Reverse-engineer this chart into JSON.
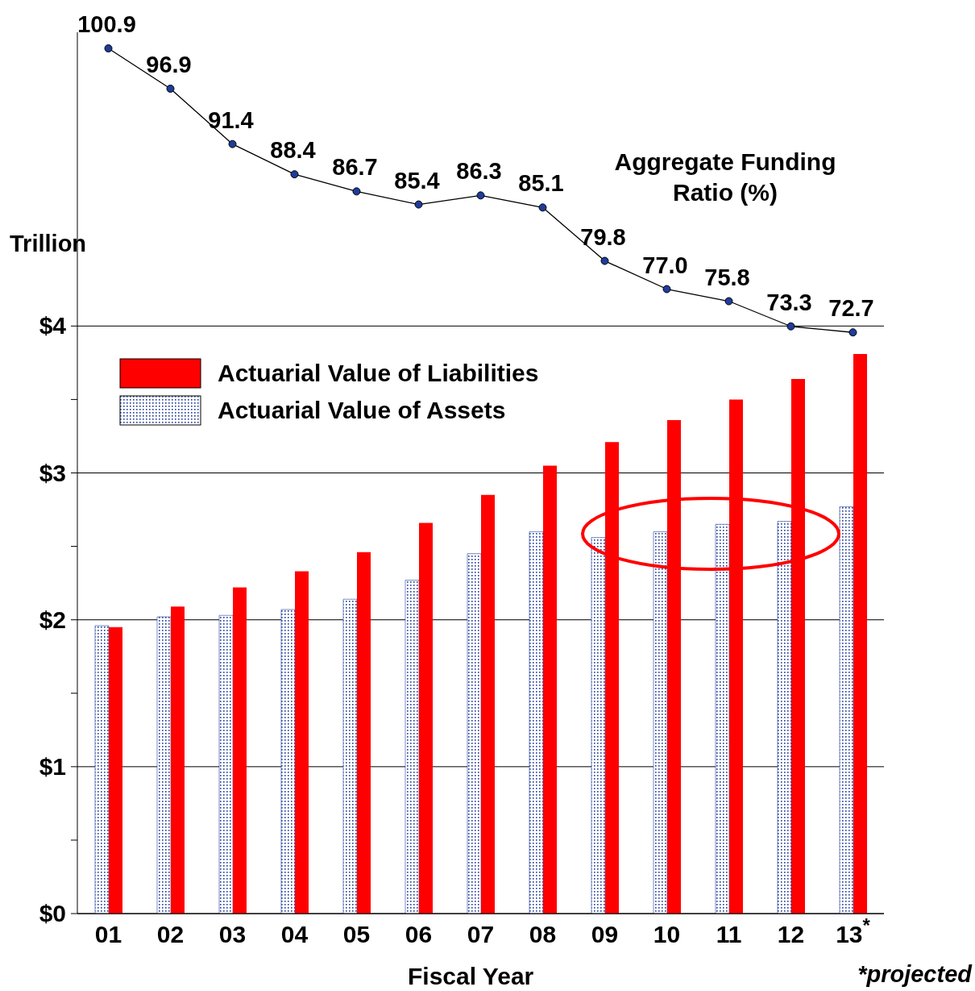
{
  "chart_data": {
    "type": "bar",
    "categories": [
      "01",
      "02",
      "03",
      "04",
      "05",
      "06",
      "07",
      "08",
      "09",
      "10",
      "11",
      "12",
      "13$^{*}$"
    ],
    "series": [
      {
        "name": "Actuarial Value of Assets",
        "color": "#1f3c9a",
        "values": [
          1.96,
          2.02,
          2.03,
          2.07,
          2.14,
          2.27,
          2.45,
          2.6,
          2.56,
          2.6,
          2.65,
          2.67,
          2.77
        ]
      },
      {
        "name": "Actuarial Value of Liabilities",
        "color": "#ff0000",
        "values": [
          1.95,
          2.09,
          2.22,
          2.33,
          2.46,
          2.66,
          2.85,
          3.05,
          3.21,
          3.36,
          3.5,
          3.64,
          3.81
        ]
      },
      {
        "name": "Aggregate Funding Ratio (%)",
        "type": "line",
        "axis": "y2",
        "color": "#1f3c9a",
        "marker": "circle",
        "values": [
          100.9,
          96.9,
          91.4,
          88.4,
          86.7,
          85.4,
          86.3,
          85.1,
          79.8,
          77.0,
          75.8,
          73.3,
          72.7
        ],
        "value_labels": [
          "100.9",
          "96.9",
          "91.4",
          "88.4",
          "86.7",
          "85.4",
          "86.3",
          "85.1",
          "79.8",
          "77.0",
          "75.8",
          "73.3",
          "72.7"
        ]
      }
    ],
    "ylabel": "Trillion",
    "xlabel": "Fiscal Year",
    "ylim": [
      0,
      6
    ],
    "yticks": [
      {
        "value": 0,
        "label": "$0"
      },
      {
        "value": 0.5,
        "label": null
      },
      {
        "value": 1,
        "label": "$1"
      },
      {
        "value": 1.5,
        "label": null
      },
      {
        "value": 2,
        "label": "$2"
      },
      {
        "value": 2.5,
        "label": null
      },
      {
        "value": 3,
        "label": "$3"
      },
      {
        "value": 3.5,
        "label": null
      },
      {
        "value": 4,
        "label": "$4"
      }
    ],
    "y2lim": [
      15,
      102.5
    ],
    "grid": "y",
    "legend": "top left",
    "annotations": [
      "*projected"
    ]
  }
}
